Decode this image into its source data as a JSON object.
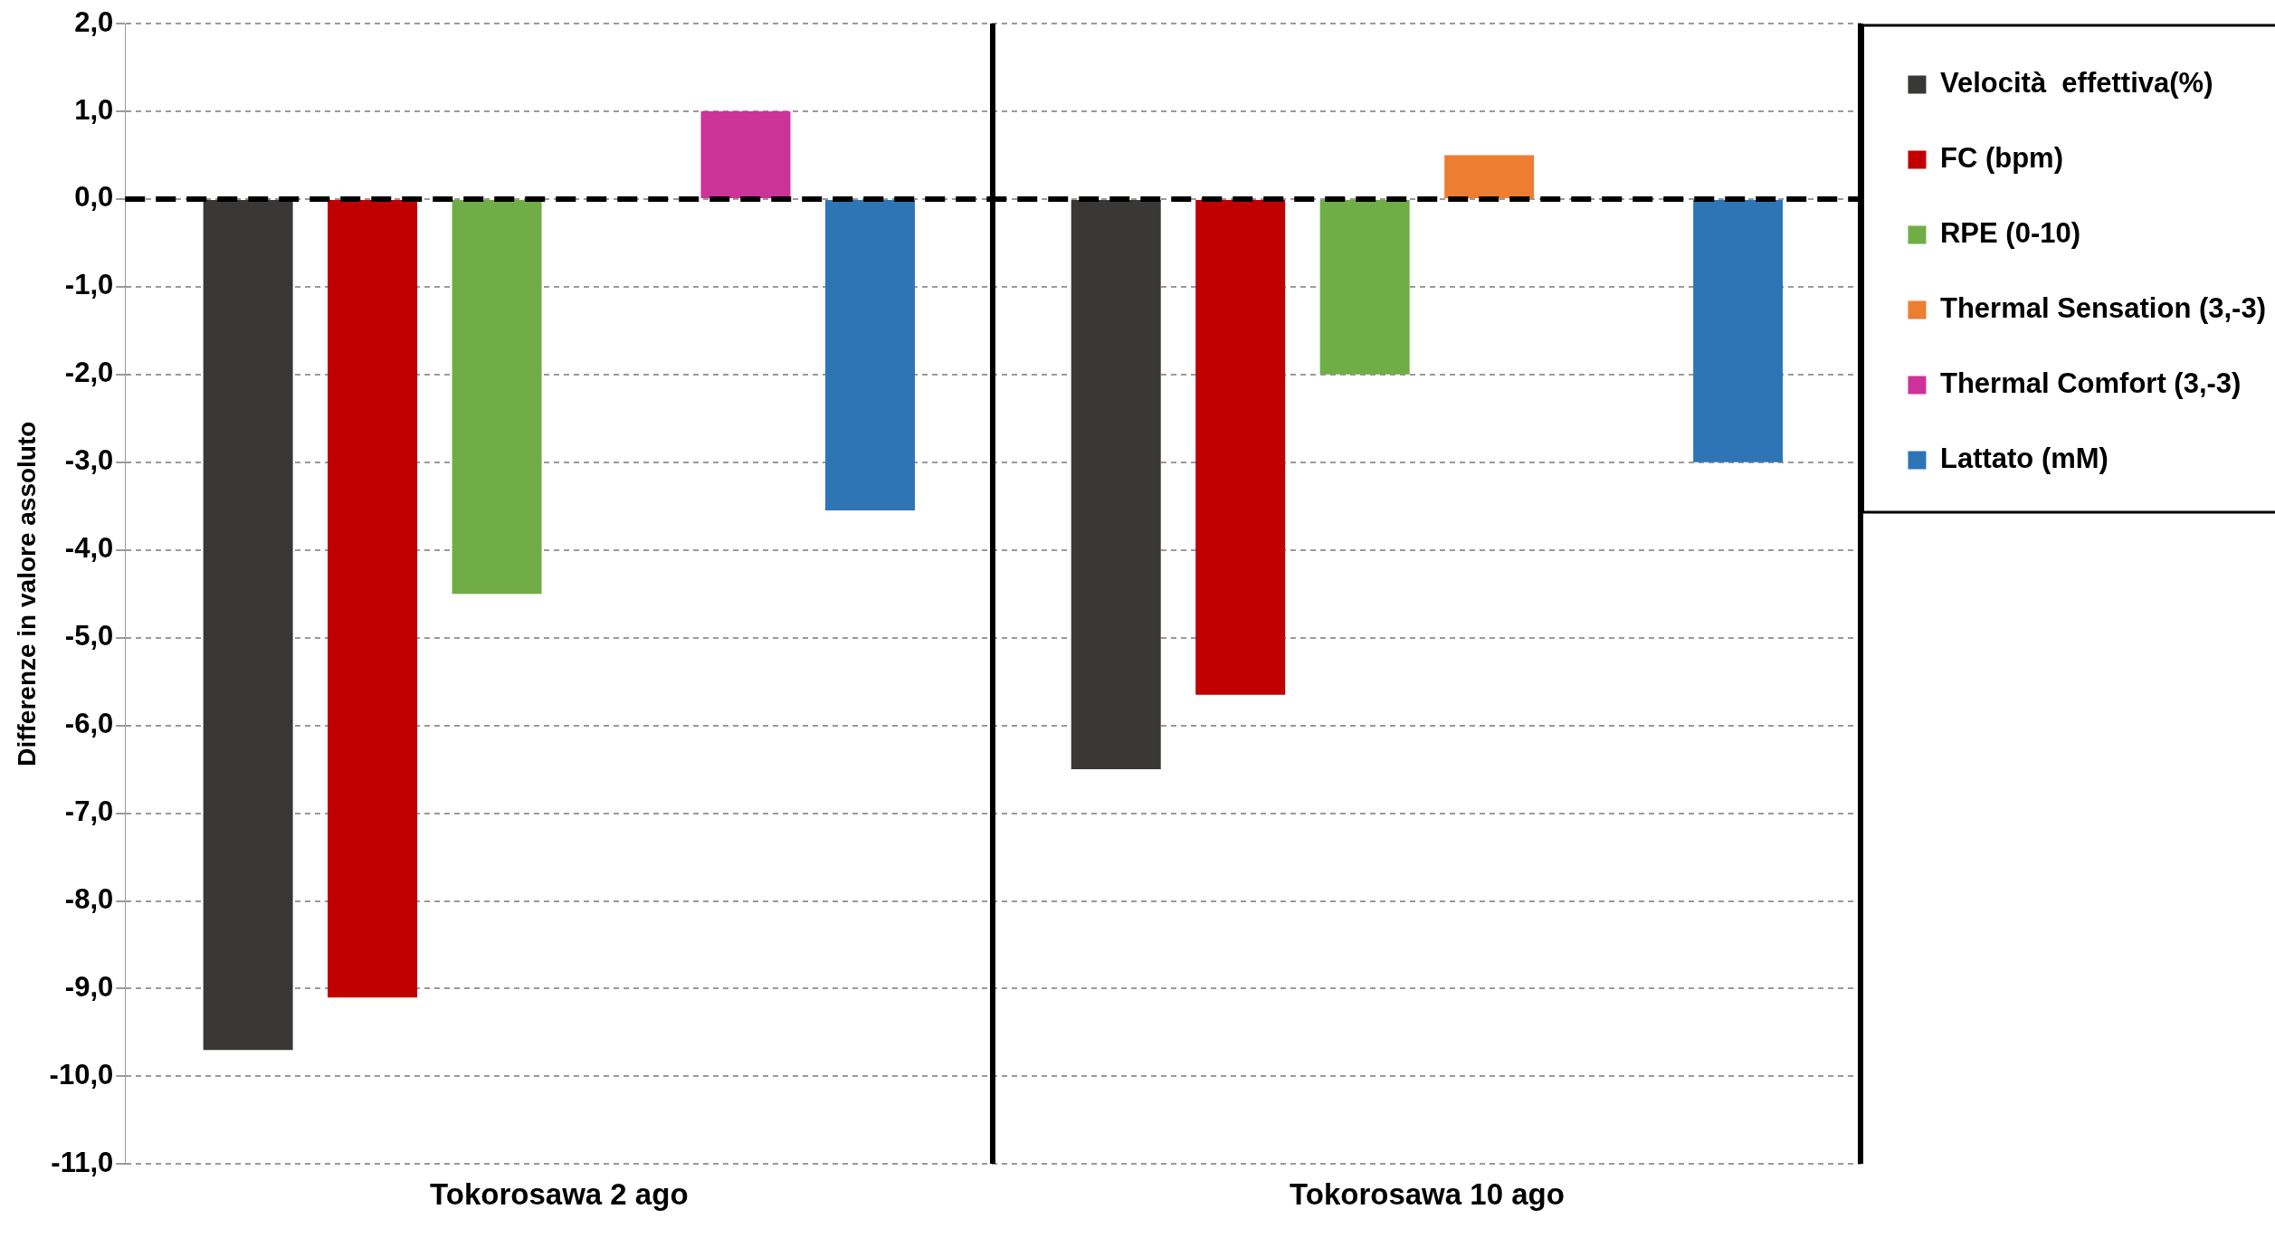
{
  "chart_data": {
    "type": "bar",
    "ylabel": "Differenze in valore assoluto",
    "categories": [
      "Tokorosawa 2 ago",
      "Tokorosawa 10 ago"
    ],
    "series": [
      {
        "name": "Velocità  effettiva(%)",
        "color": "#3a3836",
        "values": [
          -9.7,
          -6.5
        ]
      },
      {
        "name": "FC (bpm)",
        "color": "#c00000",
        "values": [
          -9.1,
          -5.65
        ]
      },
      {
        "name": "RPE (0-10)",
        "color": "#70ad47",
        "values": [
          -4.5,
          -2.0
        ]
      },
      {
        "name": "Thermal Sensation (3,-3)",
        "color": "#ed7d31",
        "values": [
          0,
          0.5
        ]
      },
      {
        "name": "Thermal Comfort (3,-3)",
        "color": "#cc3399",
        "values": [
          1.0,
          0
        ]
      },
      {
        "name": "Lattato (mM)",
        "color": "#2e75b6",
        "values": [
          -3.55,
          -3.0
        ]
      }
    ],
    "ylim": [
      -11,
      2
    ],
    "yticks": [
      {
        "value": 2,
        "label": "2,0"
      },
      {
        "value": 1,
        "label": "1,0"
      },
      {
        "value": 0,
        "label": "0,0"
      },
      {
        "value": -1,
        "label": "-1,0"
      },
      {
        "value": -2,
        "label": "-2,0"
      },
      {
        "value": -3,
        "label": "-3,0"
      },
      {
        "value": -4,
        "label": "-4,0"
      },
      {
        "value": -5,
        "label": "-5,0"
      },
      {
        "value": -6,
        "label": "-6,0"
      },
      {
        "value": -7,
        "label": "-7,0"
      },
      {
        "value": -8,
        "label": "-8,0"
      },
      {
        "value": -9,
        "label": "-9,0"
      },
      {
        "value": -10,
        "label": "-10,0"
      },
      {
        "value": -11,
        "label": "-11,0"
      }
    ],
    "grid": "y",
    "legend": "top right",
    "ref_lines": [
      {
        "axis": "y",
        "value": 0,
        "color": "#000000",
        "line_style": "dashed"
      }
    ]
  }
}
